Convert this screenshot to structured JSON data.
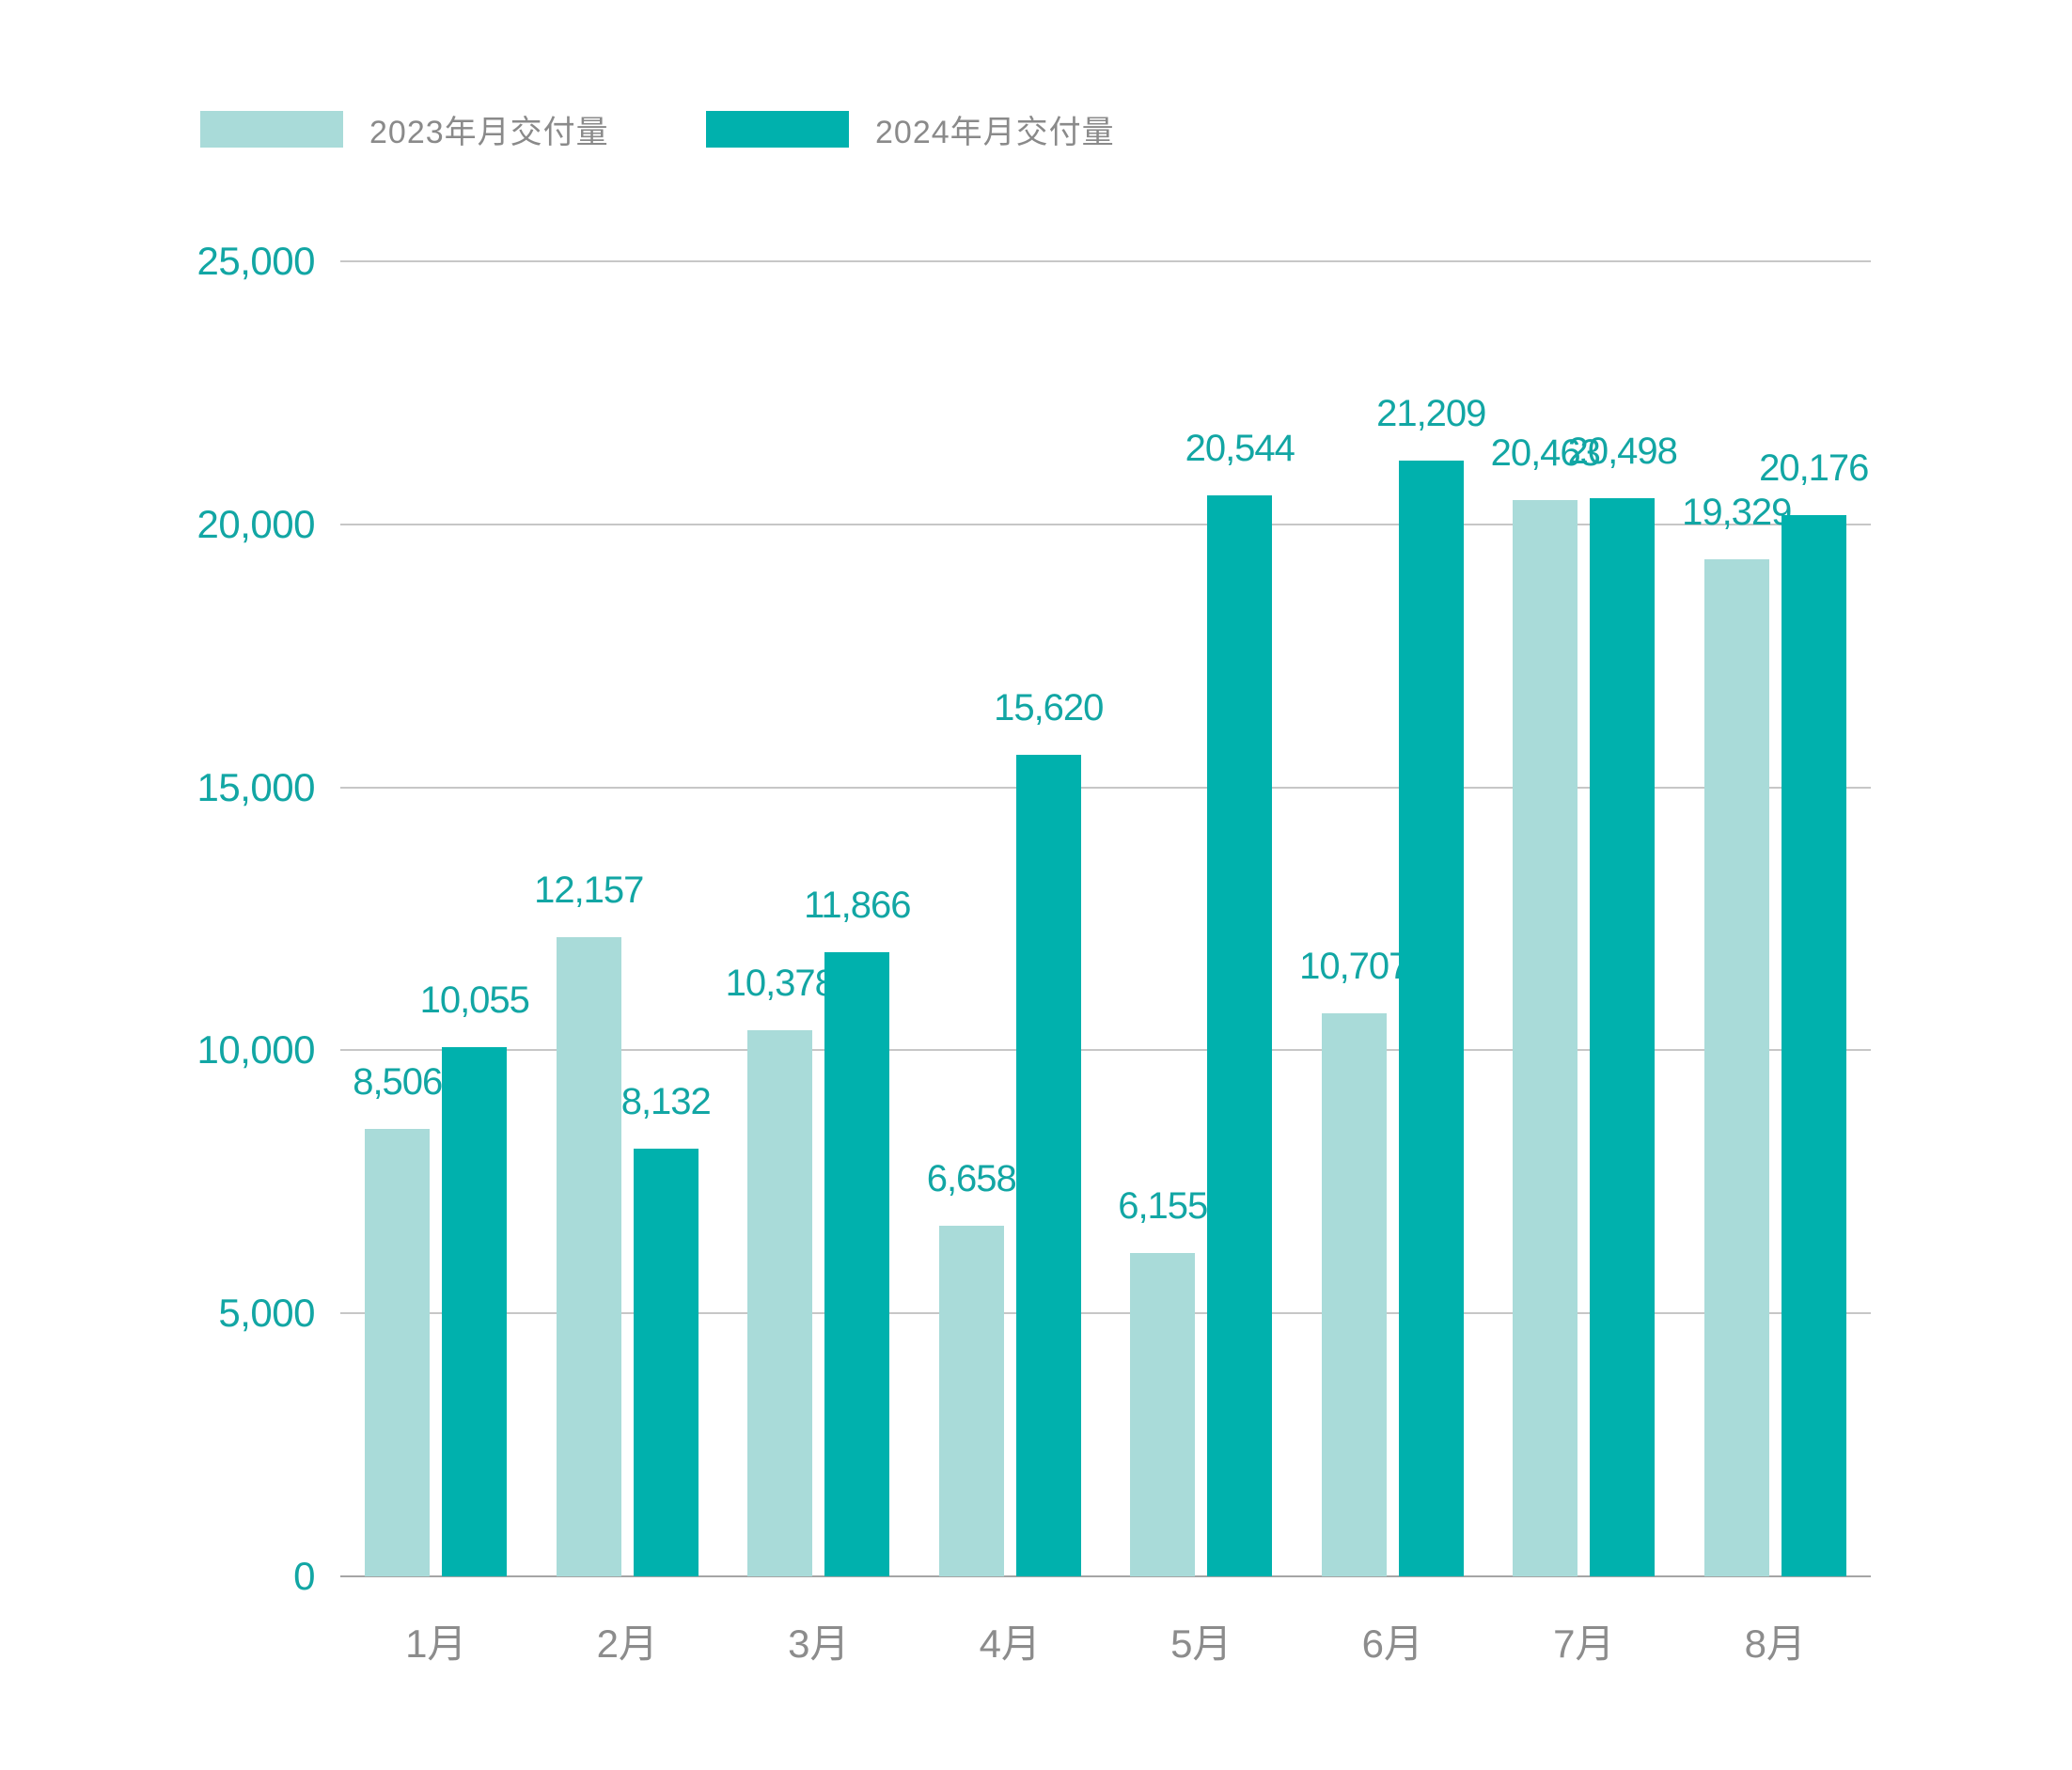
{
  "chart_data": {
    "type": "bar",
    "categories": [
      "1月",
      "2月",
      "3月",
      "4月",
      "5月",
      "6月",
      "7月",
      "8月"
    ],
    "series": [
      {
        "name": "2023年月交付量",
        "color": "#A9DBD9",
        "values": [
          8506,
          12157,
          10378,
          6658,
          6155,
          10707,
          20463,
          19329
        ]
      },
      {
        "name": "2024年月交付量",
        "color": "#00B1AD",
        "values": [
          10055,
          8132,
          11866,
          15620,
          20544,
          21209,
          20498,
          20176
        ]
      }
    ],
    "ylim": [
      0,
      25000
    ],
    "yticks": [
      0,
      5000,
      10000,
      15000,
      20000,
      25000
    ],
    "grid": true,
    "legend_position": "top-left",
    "value_labels": "above-bars",
    "xlabel": "",
    "ylabel": ""
  },
  "colors": {
    "bar_2023": "#A9DBD9",
    "bar_2024": "#00B1AD",
    "value_text": "#12A6A4",
    "axis_text": "#12A6A4",
    "month_text": "#8C8C8C",
    "legend_text": "#8A8A8A",
    "gridline": "#C7C7C7",
    "zero_line": "#A5A5A5",
    "background": "#FFFFFF"
  }
}
